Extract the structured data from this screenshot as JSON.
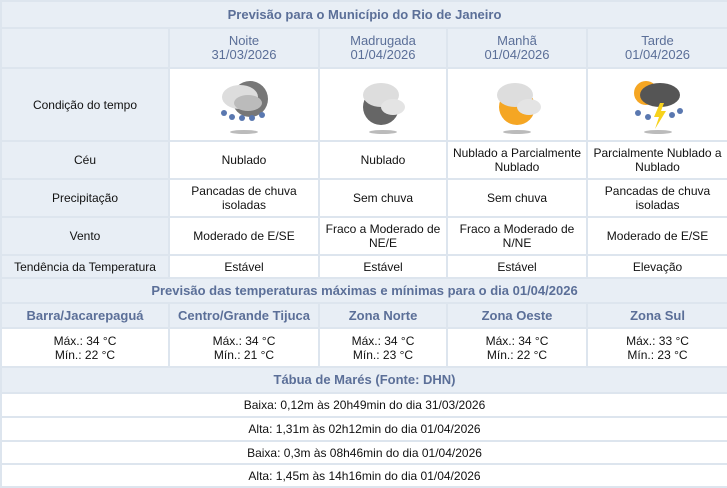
{
  "title": "Previsão para o Município do Rio de Janeiro",
  "periods": [
    {
      "name": "Noite",
      "date": "31/03/2026",
      "icon": "night-cloud-rain-icon",
      "ceu": "Nublado",
      "precipitacao": "Pancadas de chuva isoladas",
      "vento": "Moderado de E/SE",
      "tendencia": "Estável"
    },
    {
      "name": "Madrugada",
      "date": "01/04/2026",
      "icon": "night-cloudy-icon",
      "ceu": "Nublado",
      "precipitacao": "Sem chuva",
      "vento": "Fraco a Moderado de NE/E",
      "tendencia": "Estável"
    },
    {
      "name": "Manhã",
      "date": "01/04/2026",
      "icon": "sun-cloudy-icon",
      "ceu": "Nublado a Parcialmente Nublado",
      "precipitacao": "Sem chuva",
      "vento": "Fraco a Moderado de N/NE",
      "tendencia": "Estável"
    },
    {
      "name": "Tarde",
      "date": "01/04/2026",
      "icon": "sun-storm-rain-icon",
      "ceu": "Parcialmente Nublado a Nublado",
      "precipitacao": "Pancadas de chuva isoladas",
      "vento": "Moderado de E/SE",
      "tendencia": "Elevação"
    }
  ],
  "row_labels": {
    "condicao": "Condição do tempo",
    "ceu": "Céu",
    "precipitacao": "Precipitação",
    "vento": "Vento",
    "tendencia": "Tendência da Temperatura"
  },
  "temps_title": "Previsão das temperaturas máximas e mínimas para o dia 01/04/2026",
  "zones": [
    {
      "name": "Barra/Jacarepaguá",
      "max": "Máx.: 34 °C",
      "min": "Mín.: 22 °C"
    },
    {
      "name": "Centro/Grande Tijuca",
      "max": "Máx.: 34 °C",
      "min": "Mín.: 21 °C"
    },
    {
      "name": "Zona Norte",
      "max": "Máx.: 34 °C",
      "min": "Mín.: 23 °C"
    },
    {
      "name": "Zona Oeste",
      "max": "Máx.: 34 °C",
      "min": "Mín.: 22 °C"
    },
    {
      "name": "Zona Sul",
      "max": "Máx.: 33 °C",
      "min": "Mín.: 23 °C"
    }
  ],
  "tides_title": "Tábua de Marés (Fonte: DHN)",
  "tides": [
    "Baixa: 0,12m às 20h49min do dia 31/03/2026",
    "Alta: 1,31m às 02h12min do dia 01/04/2026",
    "Baixa: 0,3m às 08h46min do dia 01/04/2026",
    "Alta: 1,45m às 14h16min do dia 01/04/2026"
  ],
  "colors": {
    "header_bg": "#e8eef5",
    "header_text": "#5b6f98",
    "border": "#dde5ee"
  }
}
